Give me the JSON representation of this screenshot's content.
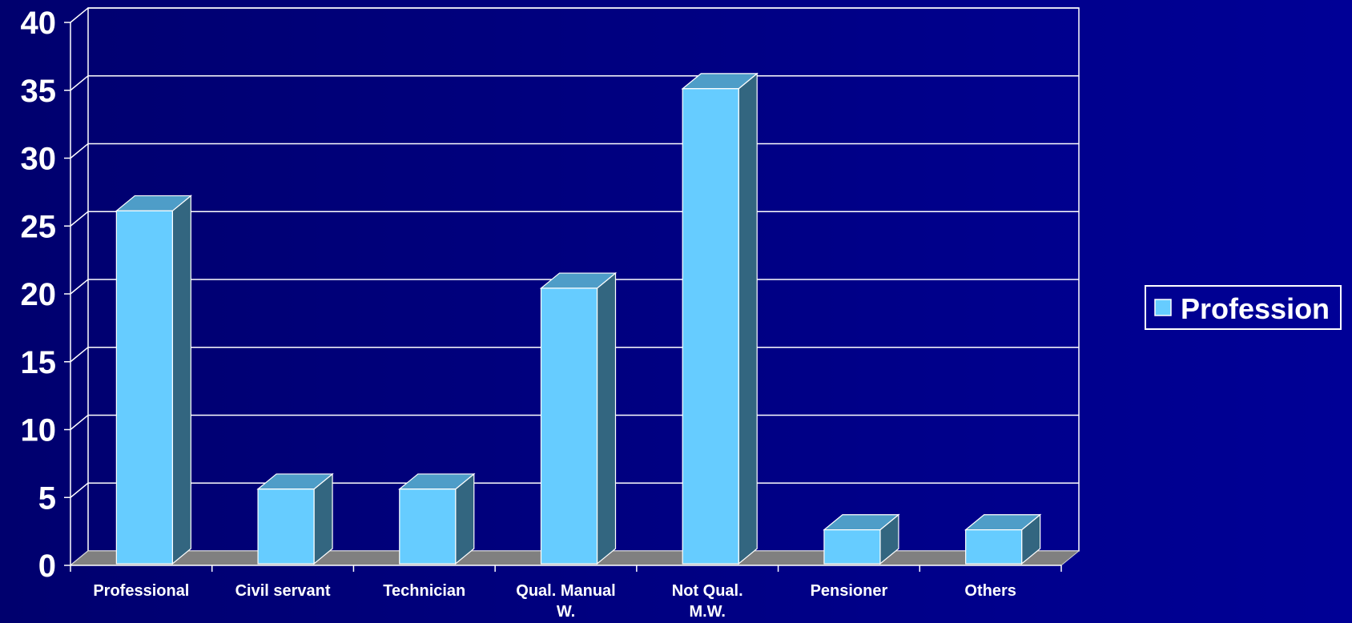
{
  "chart_data": {
    "type": "bar",
    "style": "3d",
    "categories": [
      "Professional",
      "Civil servant",
      "Technician",
      "Qual. Manual W.",
      "Not Qual. M.W.",
      "Pensioner",
      "Others"
    ],
    "category_lines": [
      [
        "Professional"
      ],
      [
        "Civil servant"
      ],
      [
        "Technician"
      ],
      [
        "Qual. Manual",
        "W."
      ],
      [
        "Not Qual.",
        "M.W."
      ],
      [
        "Pensioner"
      ],
      [
        "Others"
      ]
    ],
    "series": [
      {
        "name": "Profession",
        "values": [
          26,
          5.5,
          5.5,
          20.3,
          35,
          2.5,
          2.5
        ]
      }
    ],
    "yticks": [
      0,
      5,
      10,
      15,
      20,
      25,
      30,
      35,
      40
    ],
    "ylim": [
      0,
      40
    ],
    "grid": true,
    "legend": "right",
    "colors": {
      "bar_front": "#66ccff",
      "bar_top": "#4e9dc8",
      "bar_side": "#336680",
      "floor": "#808080",
      "grid": "#ffffff"
    }
  }
}
